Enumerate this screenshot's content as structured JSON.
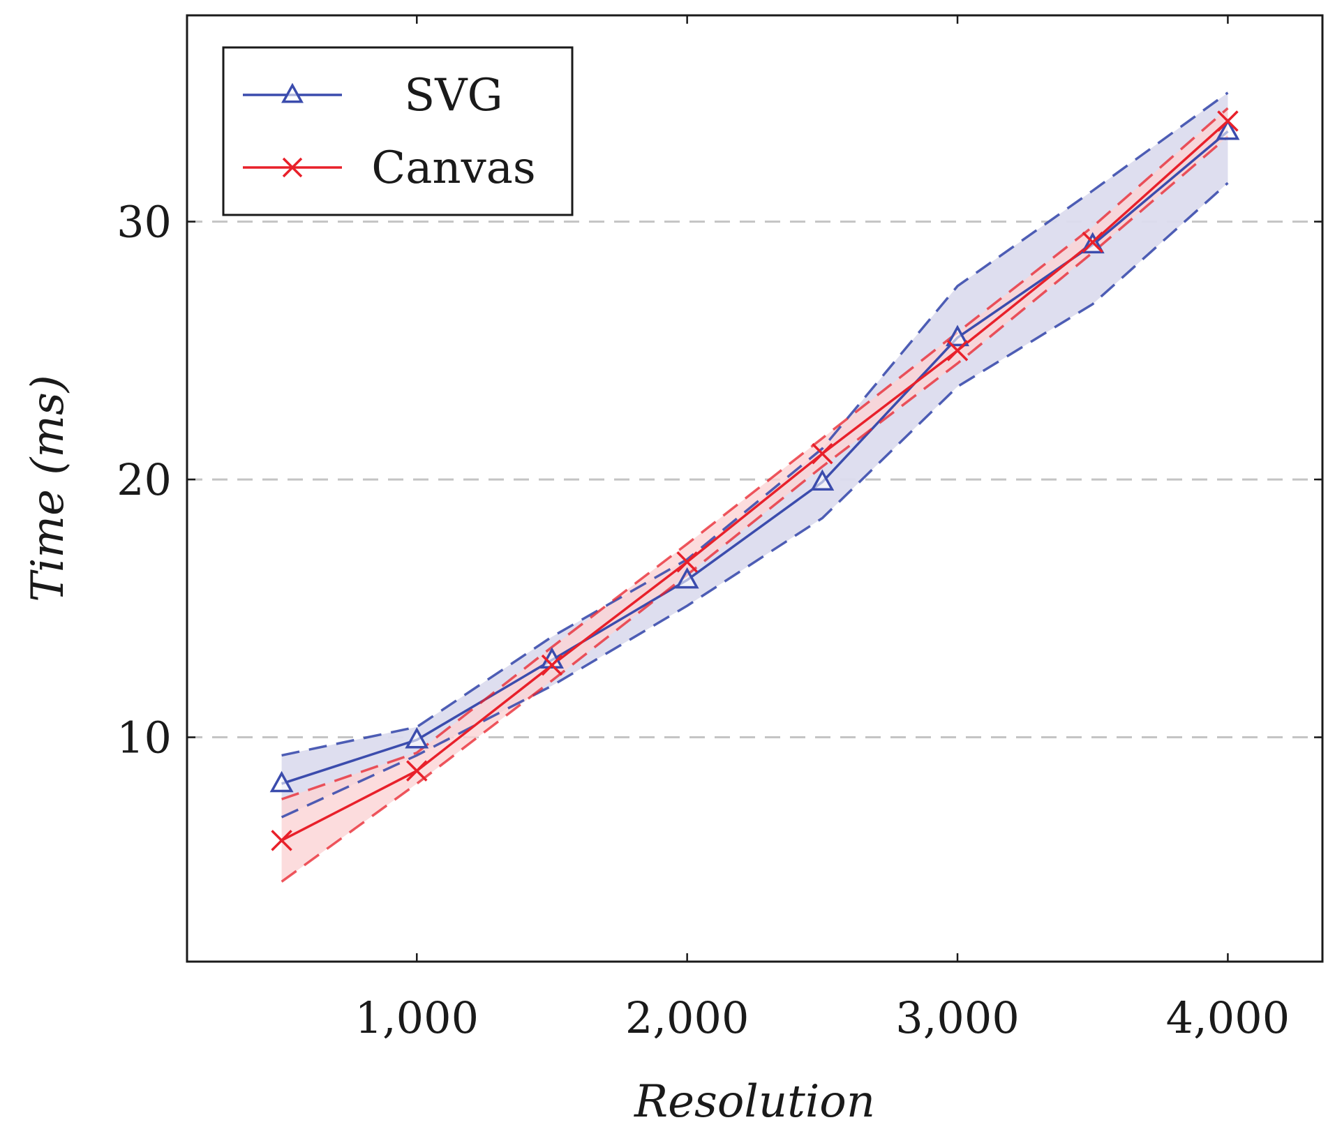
{
  "chart_data": {
    "type": "line",
    "title": "",
    "xlabel": "Resolution",
    "ylabel": "Time (ms)",
    "xlim": [
      150,
      4350
    ],
    "ylim": [
      1.3,
      38.0
    ],
    "xticks": [
      1000,
      2000,
      3000,
      4000
    ],
    "xtick_labels": [
      "1,000",
      "2,000",
      "3,000",
      "4,000"
    ],
    "yticks": [
      10,
      20,
      30
    ],
    "ytick_labels": [
      "10",
      "20",
      "30"
    ],
    "grid": "horizontal dashed",
    "legend_position": "top-left",
    "x": [
      500,
      1000,
      1500,
      2000,
      2500,
      3000,
      3500,
      4000
    ],
    "series": [
      {
        "name": "SVG",
        "marker": "triangle",
        "color": "#3b4cad",
        "fill": "#dcdcee",
        "values": [
          8.2,
          9.9,
          13.0,
          16.1,
          19.9,
          25.5,
          29.1,
          33.5
        ],
        "upper": [
          9.3,
          10.4,
          13.9,
          16.9,
          21.2,
          27.5,
          31.2,
          35.0
        ],
        "lower": [
          6.9,
          9.3,
          12.0,
          15.1,
          18.5,
          23.6,
          26.8,
          31.5
        ]
      },
      {
        "name": "Canvas",
        "marker": "cross",
        "color": "#e8202a",
        "fill": "#fbd3d4",
        "values": [
          6.0,
          8.7,
          12.8,
          16.8,
          21.0,
          25.0,
          29.2,
          33.9
        ],
        "upper": [
          7.6,
          9.4,
          13.5,
          17.5,
          21.6,
          25.7,
          29.8,
          34.4
        ],
        "lower": [
          4.4,
          8.2,
          12.2,
          16.3,
          20.5,
          24.5,
          28.8,
          33.3
        ]
      }
    ]
  }
}
